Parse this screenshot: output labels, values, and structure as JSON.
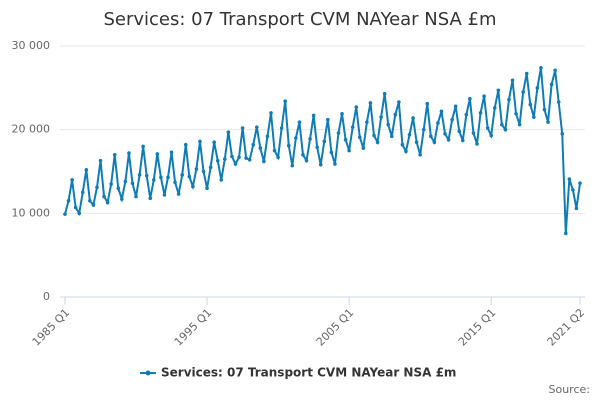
{
  "chart_data": {
    "type": "line",
    "title": "Services: 07 Transport CVM NAYear NSA £m",
    "source": "Source:",
    "categories": [
      "1985 Q1",
      null,
      null,
      null,
      null,
      null,
      null,
      null,
      null,
      null,
      null,
      null,
      null,
      null,
      null,
      null,
      null,
      null,
      null,
      null,
      null,
      null,
      null,
      null,
      null,
      null,
      null,
      null,
      null,
      null,
      null,
      null,
      null,
      null,
      null,
      null,
      null,
      null,
      null,
      null,
      "1995 Q1",
      null,
      null,
      null,
      null,
      null,
      null,
      null,
      null,
      null,
      null,
      null,
      null,
      null,
      null,
      null,
      null,
      null,
      null,
      null,
      null,
      null,
      null,
      null,
      null,
      null,
      null,
      null,
      null,
      null,
      null,
      null,
      null,
      null,
      null,
      null,
      null,
      null,
      null,
      null,
      "2005 Q1",
      null,
      null,
      null,
      null,
      null,
      null,
      null,
      null,
      null,
      null,
      null,
      null,
      null,
      null,
      null,
      null,
      null,
      null,
      null,
      null,
      null,
      null,
      null,
      null,
      null,
      null,
      null,
      null,
      null,
      null,
      null,
      null,
      null,
      null,
      null,
      null,
      null,
      null,
      null,
      "2015 Q1",
      null,
      null,
      null,
      null,
      null,
      null,
      null,
      null,
      null,
      null,
      null,
      null,
      null,
      null,
      null,
      null,
      null,
      null,
      null,
      null,
      null,
      null,
      null,
      null,
      "2021 Q2"
    ],
    "series": [
      {
        "name": "Services: 07 Transport CVM NAYear NSA £m",
        "color": "#0f7cb8",
        "values": [
          9900,
          11500,
          14000,
          10700,
          10000,
          12500,
          15200,
          11500,
          11000,
          13100,
          16300,
          12000,
          11300,
          13500,
          17000,
          13000,
          11700,
          13800,
          17200,
          13600,
          12000,
          14600,
          18000,
          14500,
          11800,
          14000,
          17100,
          14300,
          12200,
          14300,
          17300,
          13700,
          12300,
          14600,
          18200,
          14400,
          13200,
          15300,
          18600,
          15000,
          13000,
          15500,
          18500,
          16300,
          14000,
          16500,
          19700,
          16800,
          15900,
          16700,
          20200,
          16600,
          16400,
          18200,
          20300,
          17800,
          16200,
          19200,
          22000,
          17500,
          16700,
          20200,
          23400,
          18100,
          15700,
          19000,
          20900,
          17000,
          16300,
          18900,
          21700,
          17900,
          15800,
          18600,
          21200,
          17300,
          15900,
          19600,
          21900,
          18800,
          17500,
          20300,
          22700,
          19100,
          17800,
          20900,
          23200,
          19300,
          18500,
          21500,
          24300,
          20600,
          19200,
          21800,
          23300,
          18200,
          17400,
          19400,
          21400,
          18500,
          17000,
          20000,
          23100,
          19200,
          18500,
          20800,
          22200,
          19500,
          18800,
          21200,
          22800,
          19800,
          18700,
          21800,
          23700,
          19600,
          18300,
          22000,
          24000,
          20200,
          19300,
          22600,
          24700,
          20600,
          20000,
          23600,
          25900,
          21900,
          20600,
          24500,
          26700,
          23000,
          21500,
          25000,
          27400,
          22400,
          20900,
          25400,
          27100,
          23300,
          19500,
          7600,
          14100,
          12800,
          10600,
          13600
        ]
      }
    ],
    "ylim": [
      0,
      30000
    ],
    "yticks": [
      0,
      {
        "value": 10000,
        "label": "10 000"
      },
      {
        "value": 20000,
        "label": "20 000"
      },
      {
        "value": 30000,
        "label": "30 000"
      }
    ],
    "grid": true,
    "markers": true,
    "legend": "bottom"
  }
}
